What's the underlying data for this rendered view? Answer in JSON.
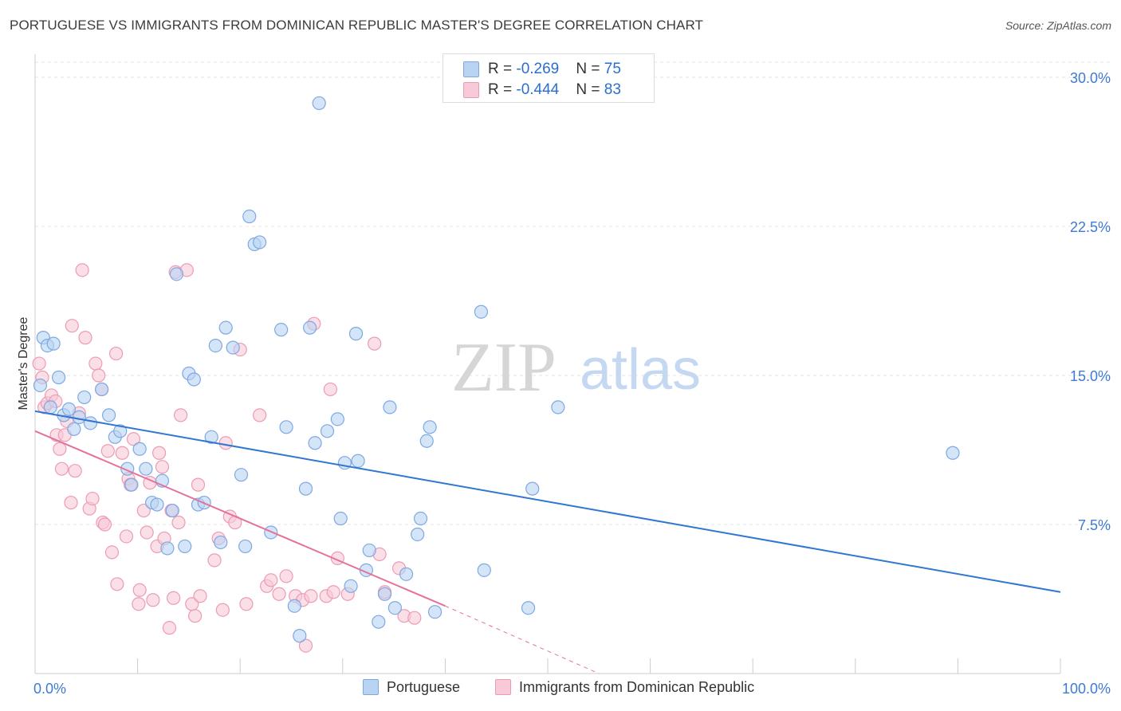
{
  "title": "PORTUGUESE VS IMMIGRANTS FROM DOMINICAN REPUBLIC MASTER'S DEGREE CORRELATION CHART",
  "source": "Source: ZipAtlas.com",
  "watermark": {
    "zip": "ZIP",
    "atlas": "atlas"
  },
  "colors": {
    "blue_fill": "#b9d3f3",
    "blue_stroke": "#7ea8e2",
    "blue_line": "#2f77d0",
    "pink_fill": "#f8c9d7",
    "pink_stroke": "#ec9bb5",
    "pink_line": "#e4729b",
    "axis_text": "#3d7ad6",
    "grid": "#e6e6e6"
  },
  "legend_top": [
    {
      "r_label": "R = ",
      "r_value": "-0.269",
      "n_label": "N = ",
      "n_value": "75",
      "swatch": "blue"
    },
    {
      "r_label": "R = ",
      "r_value": "-0.444",
      "n_label": "N = ",
      "n_value": "83",
      "swatch": "pink"
    }
  ],
  "chart_data": {
    "type": "scatter",
    "title": "PORTUGUESE VS IMMIGRANTS FROM DOMINICAN REPUBLIC MASTER'S DEGREE CORRELATION CHART",
    "xlabel": "",
    "ylabel": "Master's Degree",
    "xlim": [
      0,
      100
    ],
    "ylim": [
      0,
      31
    ],
    "x_tick_labels": [
      "0.0%",
      "100.0%"
    ],
    "y_ticks": [
      7.5,
      15.0,
      22.5,
      30.0
    ],
    "y_tick_labels": [
      "7.5%",
      "15.0%",
      "22.5%",
      "30.0%"
    ],
    "grid": true,
    "legend_position": "bottom",
    "series": [
      {
        "name": "Portuguese",
        "color": "#b9d3f3",
        "trend": {
          "x": [
            0,
            100
          ],
          "y": [
            13.2,
            4.1
          ],
          "style": "solid"
        },
        "points": [
          [
            0.8,
            16.9
          ],
          [
            1.2,
            16.5
          ],
          [
            1.8,
            16.6
          ],
          [
            2.3,
            14.9
          ],
          [
            2.8,
            13.0
          ],
          [
            3.3,
            13.3
          ],
          [
            3.8,
            12.3
          ],
          [
            4.3,
            12.9
          ],
          [
            4.8,
            13.9
          ],
          [
            5.4,
            12.6
          ],
          [
            6.5,
            14.3
          ],
          [
            7.2,
            13.0
          ],
          [
            7.8,
            11.9
          ],
          [
            8.3,
            12.2
          ],
          [
            9.0,
            10.3
          ],
          [
            9.4,
            9.5
          ],
          [
            10.2,
            11.3
          ],
          [
            10.8,
            10.3
          ],
          [
            11.4,
            8.6
          ],
          [
            11.9,
            8.5
          ],
          [
            12.4,
            9.7
          ],
          [
            12.9,
            6.3
          ],
          [
            13.4,
            8.2
          ],
          [
            13.8,
            20.1
          ],
          [
            14.6,
            6.4
          ],
          [
            15.0,
            15.1
          ],
          [
            15.5,
            14.8
          ],
          [
            15.9,
            8.5
          ],
          [
            16.5,
            8.6
          ],
          [
            17.2,
            11.9
          ],
          [
            17.6,
            16.5
          ],
          [
            18.1,
            6.6
          ],
          [
            18.6,
            17.4
          ],
          [
            19.3,
            16.4
          ],
          [
            20.1,
            10.0
          ],
          [
            20.5,
            6.4
          ],
          [
            20.9,
            23.0
          ],
          [
            21.4,
            21.6
          ],
          [
            21.9,
            21.7
          ],
          [
            23.0,
            7.1
          ],
          [
            24.0,
            17.3
          ],
          [
            24.5,
            12.4
          ],
          [
            25.3,
            3.4
          ],
          [
            25.8,
            1.9
          ],
          [
            26.4,
            9.3
          ],
          [
            26.8,
            17.4
          ],
          [
            27.3,
            11.6
          ],
          [
            27.7,
            28.7
          ],
          [
            28.5,
            12.2
          ],
          [
            29.5,
            12.8
          ],
          [
            29.8,
            7.8
          ],
          [
            30.2,
            10.6
          ],
          [
            30.8,
            4.4
          ],
          [
            31.3,
            17.1
          ],
          [
            31.5,
            10.7
          ],
          [
            32.6,
            6.2
          ],
          [
            32.3,
            5.2
          ],
          [
            33.5,
            2.6
          ],
          [
            34.1,
            4.0
          ],
          [
            34.6,
            13.4
          ],
          [
            35.1,
            3.3
          ],
          [
            36.2,
            5.0
          ],
          [
            37.3,
            7.0
          ],
          [
            37.6,
            7.8
          ],
          [
            38.2,
            11.7
          ],
          [
            38.5,
            12.4
          ],
          [
            39.0,
            3.1
          ],
          [
            43.5,
            18.2
          ],
          [
            43.8,
            5.2
          ],
          [
            48.1,
            3.3
          ],
          [
            48.5,
            9.3
          ],
          [
            51.0,
            13.4
          ],
          [
            89.5,
            11.1
          ],
          [
            0.5,
            14.5
          ],
          [
            1.5,
            13.4
          ]
        ]
      },
      {
        "name": "Immigrants from Dominican Republic",
        "color": "#f8c9d7",
        "trend": {
          "x": [
            0,
            40
          ],
          "y": [
            12.2,
            3.4
          ],
          "style": "solid",
          "dashed_to": [
            55,
            0
          ]
        },
        "points": [
          [
            0.4,
            15.6
          ],
          [
            0.7,
            14.9
          ],
          [
            0.9,
            13.4
          ],
          [
            1.2,
            13.6
          ],
          [
            1.6,
            14.0
          ],
          [
            2.0,
            13.7
          ],
          [
            2.1,
            12.0
          ],
          [
            2.4,
            11.3
          ],
          [
            2.6,
            10.3
          ],
          [
            2.9,
            12.0
          ],
          [
            3.1,
            12.7
          ],
          [
            3.5,
            8.6
          ],
          [
            3.6,
            17.5
          ],
          [
            3.9,
            10.2
          ],
          [
            4.3,
            13.1
          ],
          [
            4.6,
            20.3
          ],
          [
            4.9,
            16.9
          ],
          [
            5.3,
            8.3
          ],
          [
            5.6,
            8.8
          ],
          [
            5.9,
            15.6
          ],
          [
            6.2,
            15.0
          ],
          [
            6.5,
            14.3
          ],
          [
            6.6,
            7.6
          ],
          [
            6.8,
            7.5
          ],
          [
            7.1,
            11.2
          ],
          [
            7.5,
            6.1
          ],
          [
            7.9,
            16.1
          ],
          [
            8.0,
            4.5
          ],
          [
            8.5,
            11.1
          ],
          [
            8.9,
            6.9
          ],
          [
            9.1,
            9.8
          ],
          [
            9.3,
            9.5
          ],
          [
            9.6,
            11.8
          ],
          [
            10.1,
            3.5
          ],
          [
            10.2,
            4.2
          ],
          [
            10.6,
            8.2
          ],
          [
            10.9,
            7.1
          ],
          [
            11.2,
            9.6
          ],
          [
            11.5,
            3.7
          ],
          [
            11.9,
            6.4
          ],
          [
            12.1,
            11.1
          ],
          [
            12.4,
            10.4
          ],
          [
            12.6,
            6.8
          ],
          [
            13.1,
            2.3
          ],
          [
            13.3,
            8.2
          ],
          [
            13.5,
            3.8
          ],
          [
            13.7,
            20.2
          ],
          [
            14.0,
            7.6
          ],
          [
            14.2,
            13.0
          ],
          [
            14.8,
            20.3
          ],
          [
            15.3,
            3.5
          ],
          [
            15.6,
            2.9
          ],
          [
            15.9,
            9.5
          ],
          [
            16.1,
            3.9
          ],
          [
            17.5,
            5.7
          ],
          [
            17.9,
            6.8
          ],
          [
            18.3,
            3.2
          ],
          [
            18.6,
            11.6
          ],
          [
            19.0,
            7.9
          ],
          [
            19.5,
            7.6
          ],
          [
            20.0,
            16.3
          ],
          [
            20.6,
            3.5
          ],
          [
            21.9,
            13.0
          ],
          [
            22.6,
            4.4
          ],
          [
            23.0,
            4.7
          ],
          [
            23.8,
            4.0
          ],
          [
            24.5,
            4.9
          ],
          [
            25.4,
            3.9
          ],
          [
            26.1,
            3.7
          ],
          [
            26.4,
            1.4
          ],
          [
            26.9,
            3.9
          ],
          [
            27.2,
            17.6
          ],
          [
            28.4,
            3.9
          ],
          [
            28.8,
            14.3
          ],
          [
            29.1,
            4.1
          ],
          [
            29.5,
            5.8
          ],
          [
            30.5,
            4.0
          ],
          [
            33.1,
            16.6
          ],
          [
            33.6,
            6.0
          ],
          [
            34.1,
            4.1
          ],
          [
            35.5,
            5.3
          ],
          [
            36.0,
            2.9
          ],
          [
            37.0,
            2.8
          ]
        ]
      }
    ]
  }
}
